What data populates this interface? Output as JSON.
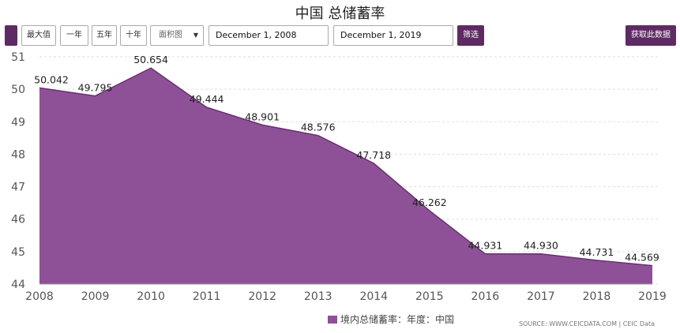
{
  "title": "中国 总储蓄率",
  "toolbar": {
    "left_button": "",
    "max_label": "最大值",
    "one_year_label": "一年",
    "five_year_label": "五年",
    "ten_year_label": "十年",
    "chart_type_value": "面积图",
    "start_date": "December 1, 2008",
    "end_date": "December 1, 2019",
    "filter_label": "筛选",
    "get_data_label": "获取此数据"
  },
  "legend": {
    "series_name": "境内总储蓄率：年度：中国"
  },
  "source": "SOURCE: WWW.CEICDATA.COM | CEIC Data",
  "colors": {
    "area": "#8e5197",
    "line": "#6b2f73",
    "button": "#5e2a63"
  },
  "chart_data": {
    "type": "area",
    "title": "中国 总储蓄率",
    "x": [
      2008,
      2009,
      2010,
      2011,
      2012,
      2013,
      2014,
      2015,
      2016,
      2017,
      2018,
      2019
    ],
    "series": [
      {
        "name": "境内总储蓄率：年度：中国",
        "values": [
          50.042,
          49.795,
          50.654,
          49.444,
          48.901,
          48.576,
          47.718,
          46.262,
          44.931,
          44.93,
          44.731,
          44.569
        ],
        "labels": [
          "50.042",
          "49.795",
          "50.654",
          "49.444",
          "48.901",
          "48.576",
          "47.718",
          "46.262",
          "44.931",
          "44.930",
          "44.731",
          "44.569"
        ]
      }
    ],
    "ylim": [
      44,
      51
    ],
    "yticks": [
      44,
      45,
      46,
      47,
      48,
      49,
      50,
      51
    ],
    "xticks": [
      2008,
      2009,
      2010,
      2011,
      2012,
      2013,
      2014,
      2015,
      2016,
      2017,
      2018,
      2019
    ],
    "grid": true,
    "legend_position": "bottom"
  }
}
